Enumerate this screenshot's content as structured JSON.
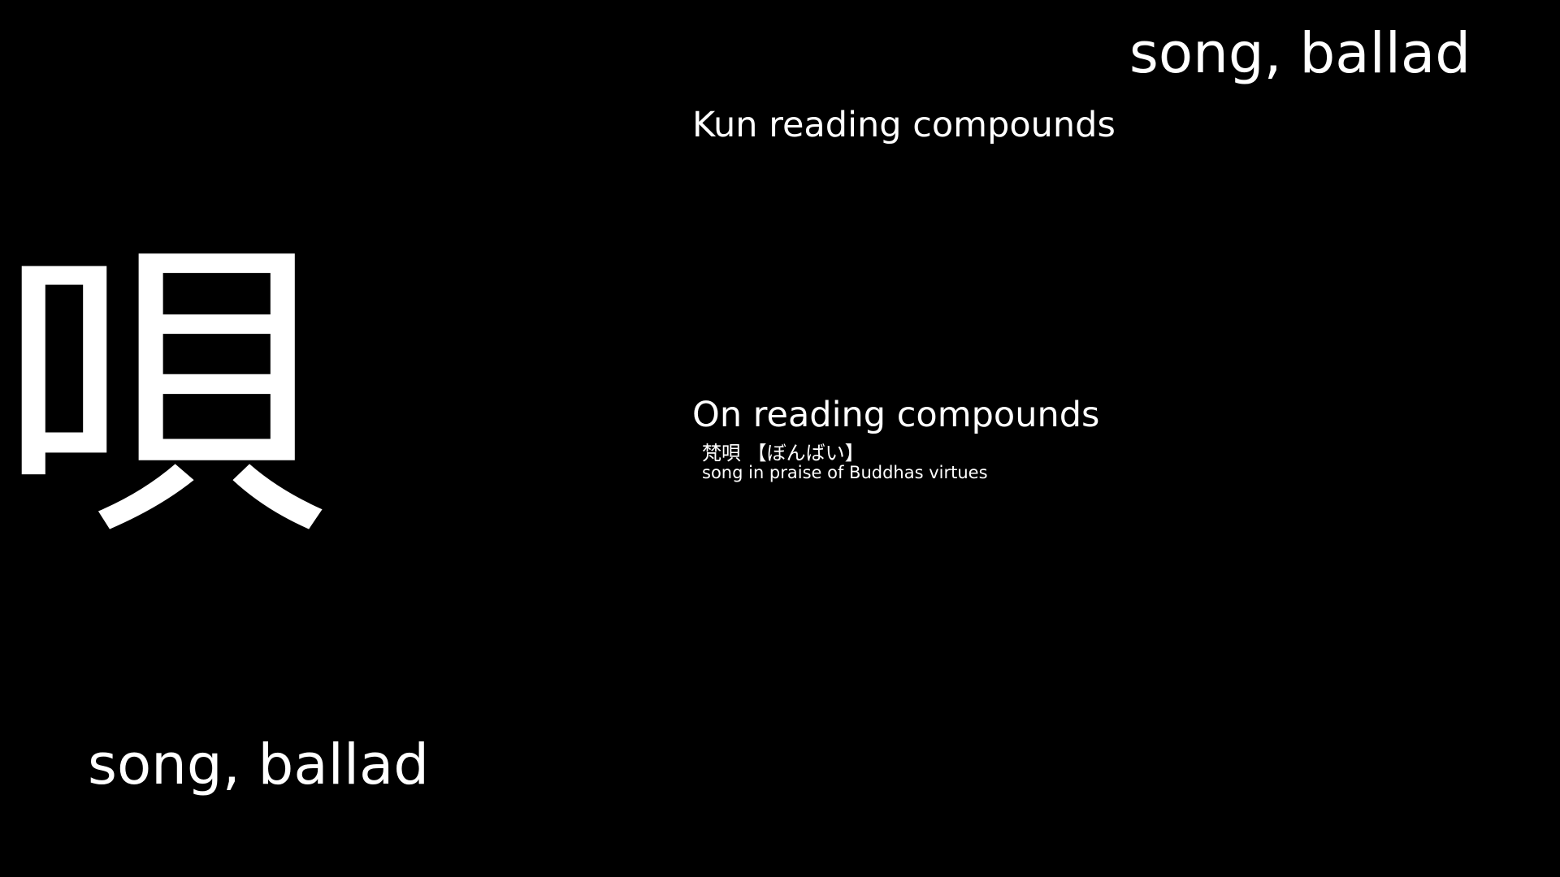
{
  "meaning": "song, ballad",
  "kun_heading": "Kun reading compounds",
  "on_heading": "On reading compounds",
  "on_compounds": [
    {
      "word": "梵唄 【ぼんばい】",
      "gloss": "song in praise of Buddhas virtues"
    }
  ],
  "colors": {
    "background": "#000000",
    "text": "#ffffff"
  }
}
